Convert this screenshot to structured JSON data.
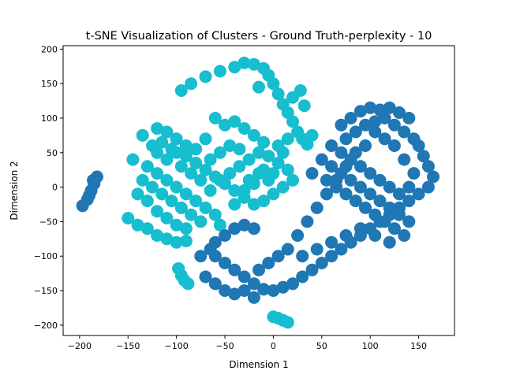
{
  "chart_data": {
    "type": "scatter",
    "title": "t-SNE Visualization of Clusters - Ground Truth-perplexity - 10",
    "xlabel": "Dimension 1",
    "ylabel": "Dimension 2",
    "xlim": [
      -217,
      187
    ],
    "ylim": [
      -215,
      205
    ],
    "xticks": [
      -200,
      -150,
      -100,
      -50,
      0,
      50,
      100,
      150
    ],
    "yticks": [
      -200,
      -150,
      -100,
      -50,
      0,
      50,
      100,
      150,
      200
    ],
    "grid": false,
    "legend": "none",
    "series": [
      {
        "color": "#17becf",
        "points": [
          [
            -30,
            180
          ],
          [
            -20,
            178
          ],
          [
            -10,
            172
          ],
          [
            -40,
            174
          ],
          [
            -55,
            168
          ],
          [
            -70,
            160
          ],
          [
            -85,
            150
          ],
          [
            -95,
            140
          ],
          [
            -5,
            162
          ],
          [
            0,
            150
          ],
          [
            -15,
            145
          ],
          [
            5,
            135
          ],
          [
            10,
            120
          ],
          [
            15,
            108
          ],
          [
            20,
            95
          ],
          [
            25,
            80
          ],
          [
            30,
            70
          ],
          [
            35,
            62
          ],
          [
            40,
            75
          ],
          [
            28,
            140
          ],
          [
            20,
            130
          ],
          [
            32,
            118
          ],
          [
            -135,
            75
          ],
          [
            -120,
            85
          ],
          [
            -110,
            80
          ],
          [
            -100,
            70
          ],
          [
            -90,
            60
          ],
          [
            -80,
            55
          ],
          [
            -70,
            70
          ],
          [
            -60,
            100
          ],
          [
            -50,
            90
          ],
          [
            -40,
            95
          ],
          [
            -30,
            85
          ],
          [
            -20,
            75
          ],
          [
            -10,
            65
          ],
          [
            -145,
            40
          ],
          [
            -130,
            30
          ],
          [
            -120,
            20
          ],
          [
            -110,
            10
          ],
          [
            -100,
            0
          ],
          [
            -90,
            -10
          ],
          [
            -80,
            -20
          ],
          [
            -70,
            -30
          ],
          [
            -60,
            -40
          ],
          [
            -55,
            -55
          ],
          [
            -150,
            -45
          ],
          [
            -140,
            -55
          ],
          [
            -130,
            -60
          ],
          [
            -120,
            -70
          ],
          [
            -110,
            -75
          ],
          [
            -100,
            -80
          ],
          [
            -90,
            -78
          ],
          [
            -140,
            -10
          ],
          [
            -130,
            -20
          ],
          [
            -120,
            -35
          ],
          [
            -110,
            -45
          ],
          [
            -100,
            -55
          ],
          [
            -90,
            -60
          ],
          [
            -135,
            10
          ],
          [
            -125,
            0
          ],
          [
            -115,
            -10
          ],
          [
            -105,
            -20
          ],
          [
            -95,
            -30
          ],
          [
            -85,
            -40
          ],
          [
            -75,
            -50
          ],
          [
            -65,
            -5
          ],
          [
            -55,
            10
          ],
          [
            -45,
            20
          ],
          [
            -35,
            30
          ],
          [
            -25,
            40
          ],
          [
            -15,
            50
          ],
          [
            -5,
            45
          ],
          [
            5,
            35
          ],
          [
            15,
            25
          ],
          [
            20,
            10
          ],
          [
            10,
            0
          ],
          [
            0,
            -10
          ],
          [
            -10,
            -20
          ],
          [
            -20,
            -25
          ],
          [
            -30,
            -15
          ],
          [
            -40,
            -5
          ],
          [
            -50,
            5
          ],
          [
            -60,
            15
          ],
          [
            -70,
            25
          ],
          [
            -80,
            35
          ],
          [
            -90,
            45
          ],
          [
            -100,
            50
          ],
          [
            -110,
            40
          ],
          [
            -120,
            50
          ],
          [
            -125,
            60
          ],
          [
            -115,
            65
          ],
          [
            -105,
            55
          ],
          [
            -95,
            30
          ],
          [
            -85,
            20
          ],
          [
            -75,
            10
          ],
          [
            -65,
            40
          ],
          [
            -55,
            50
          ],
          [
            -45,
            60
          ],
          [
            -35,
            55
          ],
          [
            -25,
            10
          ],
          [
            -15,
            20
          ],
          [
            -5,
            10
          ],
          [
            5,
            60
          ],
          [
            15,
            70
          ],
          [
            -40,
            -25
          ],
          [
            -30,
            -5
          ],
          [
            -20,
            5
          ],
          [
            -10,
            25
          ],
          [
            0,
            20
          ],
          [
            10,
            50
          ],
          [
            -98,
            -118
          ],
          [
            -95,
            -128
          ],
          [
            -92,
            -135
          ],
          [
            -88,
            -140
          ],
          [
            5,
            -190
          ],
          [
            10,
            -193
          ],
          [
            15,
            -196
          ],
          [
            0,
            -188
          ]
        ]
      },
      {
        "color": "#1f77b4",
        "points": [
          [
            -197,
            -27
          ],
          [
            -192,
            -18
          ],
          [
            -188,
            -5
          ],
          [
            -185,
            5
          ],
          [
            -182,
            15
          ],
          [
            -186,
            10
          ],
          [
            -190,
            -12
          ],
          [
            100,
            115
          ],
          [
            110,
            112
          ],
          [
            120,
            115
          ],
          [
            130,
            108
          ],
          [
            140,
            100
          ],
          [
            90,
            110
          ],
          [
            80,
            100
          ],
          [
            70,
            90
          ],
          [
            75,
            70
          ],
          [
            85,
            80
          ],
          [
            95,
            90
          ],
          [
            105,
            95
          ],
          [
            115,
            100
          ],
          [
            125,
            90
          ],
          [
            135,
            80
          ],
          [
            145,
            70
          ],
          [
            150,
            60
          ],
          [
            155,
            45
          ],
          [
            160,
            30
          ],
          [
            165,
            15
          ],
          [
            160,
            0
          ],
          [
            150,
            -10
          ],
          [
            140,
            -20
          ],
          [
            130,
            -30
          ],
          [
            120,
            -40
          ],
          [
            110,
            -50
          ],
          [
            100,
            -60
          ],
          [
            90,
            -70
          ],
          [
            80,
            -80
          ],
          [
            70,
            -90
          ],
          [
            60,
            -100
          ],
          [
            50,
            -110
          ],
          [
            40,
            -120
          ],
          [
            30,
            -130
          ],
          [
            20,
            -140
          ],
          [
            10,
            -145
          ],
          [
            0,
            -150
          ],
          [
            -10,
            -148
          ],
          [
            -20,
            -140
          ],
          [
            -30,
            -130
          ],
          [
            -40,
            -120
          ],
          [
            -50,
            -110
          ],
          [
            -60,
            -100
          ],
          [
            -65,
            -90
          ],
          [
            -60,
            -80
          ],
          [
            -50,
            -70
          ],
          [
            -40,
            -60
          ],
          [
            -30,
            -55
          ],
          [
            -20,
            -60
          ],
          [
            -75,
            -100
          ],
          [
            -70,
            -130
          ],
          [
            -60,
            -140
          ],
          [
            -50,
            -150
          ],
          [
            -40,
            -155
          ],
          [
            -30,
            -150
          ],
          [
            -20,
            -160
          ],
          [
            60,
            60
          ],
          [
            50,
            40
          ],
          [
            40,
            20
          ],
          [
            55,
            10
          ],
          [
            65,
            0
          ],
          [
            75,
            -10
          ],
          [
            85,
            -20
          ],
          [
            95,
            -30
          ],
          [
            105,
            -40
          ],
          [
            115,
            -50
          ],
          [
            125,
            -60
          ],
          [
            135,
            -70
          ],
          [
            60,
            30
          ],
          [
            70,
            20
          ],
          [
            80,
            10
          ],
          [
            90,
            0
          ],
          [
            100,
            -10
          ],
          [
            110,
            -20
          ],
          [
            120,
            -30
          ],
          [
            130,
            -40
          ],
          [
            140,
            -50
          ],
          [
            70,
            50
          ],
          [
            80,
            40
          ],
          [
            90,
            30
          ],
          [
            100,
            20
          ],
          [
            110,
            10
          ],
          [
            120,
            0
          ],
          [
            130,
            -10
          ],
          [
            140,
            0
          ],
          [
            145,
            20
          ],
          [
            135,
            40
          ],
          [
            125,
            60
          ],
          [
            115,
            70
          ],
          [
            105,
            80
          ],
          [
            95,
            60
          ],
          [
            85,
            50
          ],
          [
            75,
            30
          ],
          [
            65,
            10
          ],
          [
            55,
            -10
          ],
          [
            45,
            -30
          ],
          [
            35,
            -50
          ],
          [
            25,
            -70
          ],
          [
            15,
            -90
          ],
          [
            5,
            -100
          ],
          [
            -5,
            -110
          ],
          [
            -15,
            -120
          ],
          [
            30,
            -100
          ],
          [
            45,
            -90
          ],
          [
            60,
            -80
          ],
          [
            75,
            -70
          ],
          [
            90,
            -60
          ],
          [
            105,
            -70
          ],
          [
            120,
            -80
          ]
        ]
      }
    ]
  }
}
